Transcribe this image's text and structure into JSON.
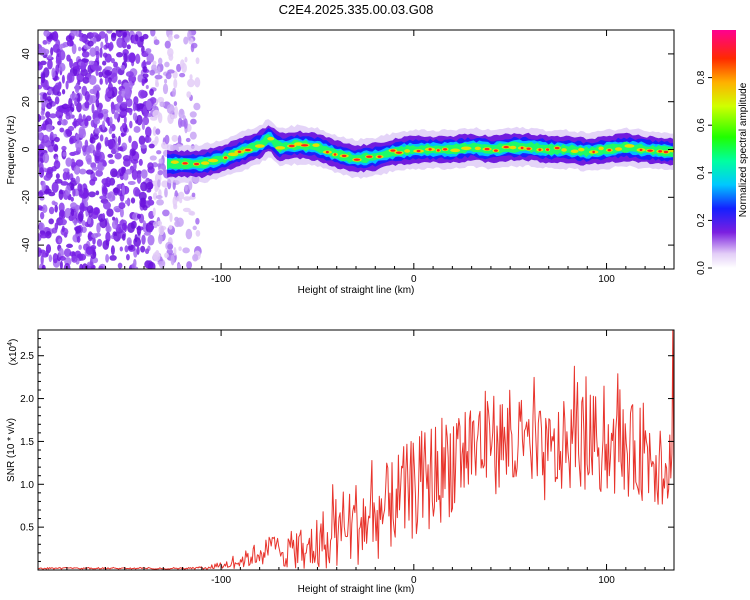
{
  "title": "C2E4.2025.335.00.03.G08",
  "chart_data": [
    {
      "type": "heatmap",
      "xlabel": "Height of straight line (km)",
      "ylabel": "Frequency (Hz)",
      "xlim": [
        -195,
        135
      ],
      "ylim": [
        -50,
        50
      ],
      "xticks": [
        -100,
        0,
        100
      ],
      "xtick_labels": [
        "-100",
        "0",
        "100"
      ],
      "yticks": [
        -40,
        -20,
        0,
        20,
        40
      ],
      "ytick_labels": [
        "-40",
        "-20",
        "0",
        "20",
        "40"
      ],
      "noise_region_x": [
        -195,
        -112
      ],
      "signal_start_x": -128,
      "signal_ridge": {
        "x": [
          -128,
          -110,
          -100,
          -90,
          -80,
          -75,
          -70,
          -60,
          -50,
          -40,
          -30,
          -20,
          -10,
          0,
          10,
          20,
          30,
          40,
          50,
          60,
          70,
          80,
          90,
          100,
          110,
          120,
          135
        ],
        "y": [
          -6,
          -6,
          -4,
          -1,
          2,
          5,
          1,
          2,
          1,
          -2,
          -4,
          -3,
          -1,
          0,
          0,
          0,
          1,
          0,
          1,
          1,
          0,
          0,
          -1,
          0,
          1,
          0,
          -1
        ]
      },
      "colorbar": {
        "label": "Normalized spectral amplitude",
        "ticks": [
          0.0,
          0.2,
          0.4,
          0.6,
          0.8
        ],
        "tick_labels": [
          "0.0",
          "0.2",
          "0.4",
          "0.6",
          "0.8"
        ],
        "range": [
          0,
          1
        ]
      }
    },
    {
      "type": "line",
      "xlabel": "Height of straight line (km)",
      "ylabel": "SNR (10 * v/v)",
      "y_multiplier": "(x10",
      "y_multiplier_exp": "4",
      "y_multiplier_close": ")",
      "xlim": [
        -195,
        135
      ],
      "ylim": [
        0,
        2.8
      ],
      "xticks": [
        -100,
        0,
        100
      ],
      "xtick_labels": [
        "-100",
        "0",
        "100"
      ],
      "yticks": [
        0.5,
        1.0,
        1.5,
        2.0,
        2.5
      ],
      "ytick_labels": [
        "0.5",
        "1.0",
        "1.5",
        "2.0",
        "2.5"
      ],
      "series": [
        {
          "name": "SNR",
          "color": "#e8342c",
          "envelope_x": [
            -195,
            -120,
            -105,
            -90,
            -80,
            -70,
            -60,
            -50,
            -40,
            -30,
            -20,
            -10,
            0,
            10,
            20,
            30,
            40,
            50,
            60,
            70,
            80,
            90,
            100,
            110,
            120,
            130,
            135
          ],
          "envelope_mean": [
            0.0,
            0.0,
            0.03,
            0.1,
            0.2,
            0.25,
            0.2,
            0.3,
            0.45,
            0.55,
            0.6,
            0.8,
            0.95,
            1.1,
            1.3,
            1.45,
            1.5,
            1.45,
            1.35,
            1.3,
            1.45,
            1.5,
            1.4,
            1.4,
            1.35,
            1.3,
            1.2
          ],
          "envelope_spread": [
            0.01,
            0.01,
            0.03,
            0.08,
            0.15,
            0.2,
            0.25,
            0.35,
            0.45,
            0.5,
            0.5,
            0.55,
            0.6,
            0.65,
            0.65,
            0.65,
            0.6,
            0.6,
            0.55,
            0.55,
            0.55,
            0.6,
            0.55,
            0.55,
            0.55,
            0.6,
            0.6
          ],
          "final_spike": 2.8
        }
      ]
    }
  ]
}
